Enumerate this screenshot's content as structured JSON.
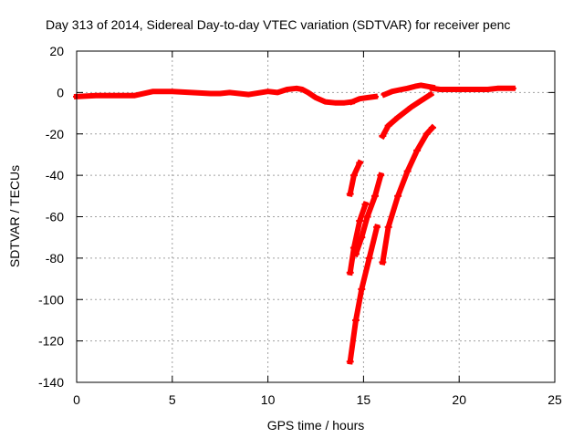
{
  "chart_data": {
    "type": "scatter",
    "title": "Day 313 of 2014, Sidereal Day-to-day VTEC variation (SDTVAR) for receiver penc",
    "xlabel": "GPS time / hours",
    "ylabel": "SDTVAR / TECUs",
    "xlim": [
      0,
      25
    ],
    "ylim": [
      -140,
      20
    ],
    "xticks": [
      0,
      5,
      10,
      15,
      20,
      25
    ],
    "yticks": [
      20,
      0,
      -20,
      -40,
      -60,
      -80,
      -100,
      -120,
      -140
    ],
    "grid": true,
    "color": "#ff0000",
    "series": [
      {
        "x": [
          0.0,
          1.0,
          2.0,
          3.0,
          4.0,
          5.0,
          6.0,
          7.0,
          7.5,
          8.0,
          9.0,
          10.0,
          10.5,
          11.0,
          11.5,
          11.8,
          12.1,
          12.5,
          13.0,
          13.5,
          14.0,
          14.4
        ],
        "y": [
          -2,
          -1.5,
          -1.5,
          -1.5,
          0.5,
          0.5,
          0,
          -0.5,
          -0.5,
          0,
          -1,
          0.5,
          0,
          1.5,
          2,
          1.5,
          0,
          -2.5,
          -4.5,
          -5,
          -5,
          -4.5
        ]
      },
      {
        "x": [
          14.4,
          14.8,
          15.2,
          15.6
        ],
        "y": [
          -4.5,
          -3,
          -2.5,
          -2
        ]
      },
      {
        "x": [
          16.1,
          16.5,
          17.0,
          17.3,
          17.7,
          18.0,
          18.3,
          18.6
        ],
        "y": [
          -1,
          0.5,
          1.5,
          2,
          3,
          3.5,
          3,
          2.5
        ]
      },
      {
        "x": [
          18.6,
          19.0,
          19.5,
          20.0,
          20.5,
          21.0,
          21.5,
          22.0,
          22.5,
          22.8
        ],
        "y": [
          2,
          1.5,
          1.5,
          1.5,
          1.5,
          1.5,
          1.5,
          2,
          2,
          2
        ]
      },
      {
        "x": [
          16.0,
          16.3,
          16.8,
          17.5,
          18.0,
          18.5
        ],
        "y": [
          -21,
          -16,
          -12,
          -7,
          -4,
          -1
        ]
      },
      {
        "x": [
          16.0,
          16.3,
          16.8,
          17.3,
          17.8,
          18.3,
          18.6
        ],
        "y": [
          -82,
          -65,
          -50,
          -38,
          -28,
          -20,
          -17
        ]
      },
      {
        "x": [
          14.3,
          14.5,
          14.8
        ],
        "y": [
          -49,
          -40,
          -34
        ]
      },
      {
        "x": [
          14.3,
          14.5,
          14.8,
          15.1
        ],
        "y": [
          -87,
          -75,
          -62,
          -54
        ]
      },
      {
        "x": [
          14.6,
          14.9,
          15.2,
          15.6,
          15.9
        ],
        "y": [
          -78,
          -70,
          -60,
          -50,
          -40
        ]
      },
      {
        "x": [
          14.3,
          14.6,
          14.9,
          15.3,
          15.7
        ],
        "y": [
          -130,
          -110,
          -95,
          -80,
          -65
        ]
      }
    ]
  }
}
